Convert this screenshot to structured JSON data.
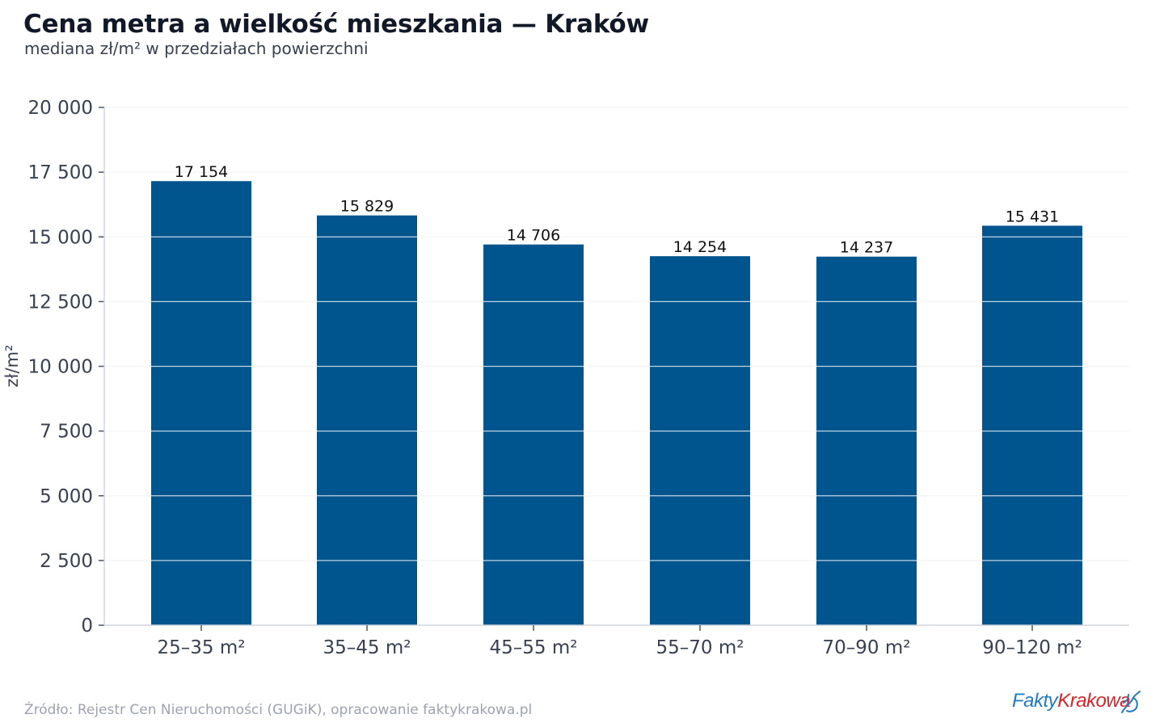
{
  "title": "Cena metra a wielkość mieszkania — Kraków",
  "subtitle": "mediana zł/m² w przedziałach powierzchni",
  "source": "Źródło: Rejestr Cen Nieruchomości (GUGiK), opracowanie faktykrakowa.pl",
  "logo": {
    "part1": "Fakty",
    "part2": "Krakowa"
  },
  "colors": {
    "bar": "#00558e",
    "grid": "#e5e7eb",
    "axis": "#d1d5db",
    "logo_blue": "#1f7cc1",
    "logo_red": "#d9242a"
  },
  "chart_data": {
    "type": "bar",
    "categories": [
      "25–35 m²",
      "35–45 m²",
      "45–55 m²",
      "55–70 m²",
      "70–90 m²",
      "90–120 m²"
    ],
    "values": [
      17154,
      15829,
      14706,
      14254,
      14237,
      15431
    ],
    "value_labels": [
      "17 154",
      "15 829",
      "14 706",
      "14 254",
      "14 237",
      "15 431"
    ],
    "ylabel": "zł/m²",
    "ylim": [
      0,
      20000
    ],
    "yticks": [
      0,
      2500,
      5000,
      7500,
      10000,
      12500,
      15000,
      17500,
      20000
    ],
    "ytick_labels": [
      "0",
      "2 500",
      "5 000",
      "7 500",
      "10 000",
      "12 500",
      "15 000",
      "17 500",
      "20 000"
    ],
    "grid": true
  }
}
